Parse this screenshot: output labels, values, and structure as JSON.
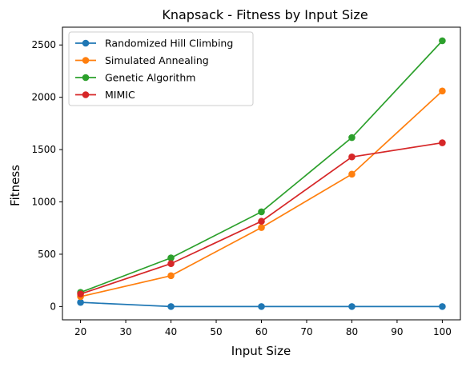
{
  "chart_data": {
    "type": "line",
    "title": "Knapsack - Fitness by Input Size",
    "xlabel": "Input Size",
    "ylabel": "Fitness",
    "x": [
      20,
      40,
      60,
      80,
      100
    ],
    "xticks": [
      20,
      30,
      40,
      50,
      60,
      70,
      80,
      90,
      100
    ],
    "yticks": [
      0,
      500,
      1000,
      1500,
      2000,
      2500
    ],
    "xlim": [
      16,
      104
    ],
    "ylim": [
      -127,
      2670
    ],
    "grid": false,
    "legend_position": "top-left",
    "series": [
      {
        "name": "Randomized Hill Climbing",
        "color": "#1f77b4",
        "values": [
          40,
          0,
          0,
          0,
          0
        ]
      },
      {
        "name": "Simulated Annealing",
        "color": "#ff7f0e",
        "values": [
          95,
          295,
          755,
          1265,
          2060
        ]
      },
      {
        "name": "Genetic Algorithm",
        "color": "#2ca02c",
        "values": [
          135,
          465,
          905,
          1615,
          2540
        ]
      },
      {
        "name": "MIMIC",
        "color": "#d62728",
        "values": [
          120,
          410,
          815,
          1430,
          1565
        ]
      }
    ]
  }
}
